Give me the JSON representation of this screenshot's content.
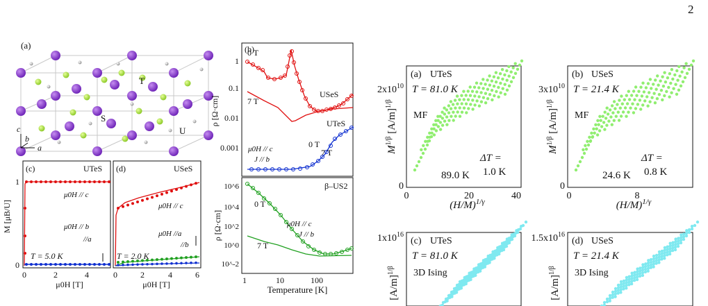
{
  "page_number": "2",
  "panel_a": {
    "tag": "(a)",
    "atoms": {
      "t": "T",
      "s": "S",
      "u": "U"
    },
    "axes": {
      "a": "a",
      "b": "b",
      "c": "c"
    }
  },
  "panel_b": {
    "tag": "(b)",
    "ylabel": "ρ [Ω·cm]",
    "yticks": [
      "1",
      "0.1",
      "0.01",
      "0.001"
    ],
    "labels": {
      "t0": "0 T",
      "t7": "7 T",
      "useS": "USeS",
      "uteS": "UTeS",
      "b0": "0 T",
      "b7": "7 T",
      "h": "μ0H // c",
      "j": "J // b"
    }
  },
  "panel_b2": {
    "tag": "β–US2",
    "ylabel": "ρ [Ω·cm]",
    "xlabel": "Temperature [K]",
    "yticks": [
      "10^6",
      "10^4",
      "10^2",
      "10^0",
      "10^-2"
    ],
    "xticks": [
      "1",
      "10",
      "100"
    ],
    "labels": {
      "t0": "0 T",
      "t7": "7 T",
      "h": "μ0H // c",
      "j": "J // b"
    }
  },
  "panel_c": {
    "tag": "(c)",
    "compound": "UTeS",
    "ylabel": "M [μB/U]",
    "xlabel": "μ0H [T]",
    "xticks": [
      "0",
      "2",
      "4"
    ],
    "yticks": [
      "0",
      "1"
    ],
    "labels": {
      "hc": "μ0H // c",
      "hb": "μ0H // b",
      "ha": "//a",
      "temp": "T = 5.0 K"
    }
  },
  "panel_d": {
    "tag": "(d)",
    "compound": "USeS",
    "xlabel": "μ0H [T]",
    "xticks": [
      "0",
      "2",
      "4",
      "6"
    ],
    "labels": {
      "hc": "μ0H // c",
      "ha": "μ0H //a",
      "hb": "//b",
      "temp": "T = 2.0 K"
    }
  },
  "arrott": [
    {
      "tag": "(a)",
      "compound": "UTeS",
      "temp": "T = 81.0 K",
      "model": "MF",
      "dt1": "ΔT =",
      "dt2": "1.0 K",
      "end": "89.0 K",
      "ylabel": "M1/β [A/m]1/β",
      "xlabel": "(H/M)1/γ",
      "yticks": [
        "2x10^10",
        "0"
      ],
      "xticks": [
        "0",
        "20",
        "40"
      ],
      "color": "#90ee70"
    },
    {
      "tag": "(b)",
      "compound": "USeS",
      "temp": "T = 21.4 K",
      "model": "MF",
      "dt1": "ΔT =",
      "dt2": "0.8 K",
      "end": "24.6 K",
      "ylabel": "M1/β [A/m]1/β",
      "xlabel": "(H/M)1/γ",
      "yticks": [
        "3x10^10",
        "0"
      ],
      "xticks": [
        "0",
        "8"
      ],
      "color": "#90ee70"
    },
    {
      "tag": "(c)",
      "compound": "UTeS",
      "temp": "T = 81.0 K",
      "model": "3D Ising",
      "ylabel": "[A/m]1/β",
      "yticks": [
        "1x10^16"
      ],
      "color": "#7fe9f0"
    },
    {
      "tag": "(d)",
      "compound": "USeS",
      "temp": "T = 21.4 K",
      "model": "3D Ising",
      "ylabel": "[A/m]1/β",
      "yticks": [
        "1.5x10^16"
      ],
      "color": "#7fe9f0"
    }
  ]
}
